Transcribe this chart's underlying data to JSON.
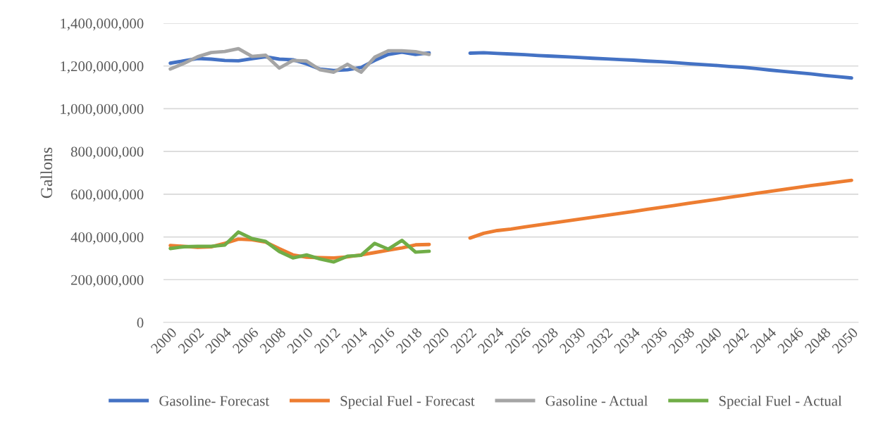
{
  "chart_data": {
    "type": "line",
    "ylabel": "Gallons",
    "categories": [
      "2000",
      null,
      "2002",
      null,
      "2004",
      null,
      "2006",
      null,
      "2008",
      null,
      "2010",
      null,
      "2012",
      null,
      "2014",
      null,
      "2016",
      null,
      "2018",
      null,
      "2020",
      null,
      "2022",
      null,
      "2024",
      null,
      "2026",
      null,
      "2028",
      null,
      "2030",
      null,
      "2032",
      null,
      "2034",
      null,
      "2036",
      null,
      "2038",
      null,
      "2040",
      null,
      "2042",
      null,
      "2044",
      null,
      "2046",
      null,
      "2048",
      null,
      "2050"
    ],
    "series": [
      {
        "name": "Gasoline- Forecast",
        "color": "#4472c4",
        "values": [
          1213000000,
          1224000000,
          1235000000,
          1232000000,
          1226000000,
          1224000000,
          1234000000,
          1243000000,
          1232000000,
          1229000000,
          1210000000,
          1185000000,
          1179000000,
          1182000000,
          1193000000,
          1226000000,
          1254000000,
          1265000000,
          1254000000,
          1261000000,
          null,
          null,
          1260000000,
          1262000000,
          1259000000,
          1256000000,
          1253000000,
          1249000000,
          1246000000,
          1243000000,
          1240000000,
          1236000000,
          1233000000,
          1230000000,
          1227000000,
          1223000000,
          1220000000,
          1216000000,
          1211000000,
          1207000000,
          1203000000,
          1198000000,
          1194000000,
          1188000000,
          1181000000,
          1175000000,
          1169000000,
          1163000000,
          1156000000,
          1150000000,
          1144000000
        ]
      },
      {
        "name": "Special Fuel - Forecast",
        "color": "#ed7d31",
        "values": [
          360000000,
          356000000,
          351000000,
          354000000,
          370000000,
          390000000,
          387000000,
          376000000,
          345000000,
          316000000,
          305000000,
          303000000,
          302000000,
          307000000,
          316000000,
          327000000,
          338000000,
          349000000,
          363000000,
          365000000,
          null,
          null,
          395000000,
          417000000,
          430000000,
          437000000,
          447000000,
          456000000,
          465000000,
          474000000,
          483000000,
          492000000,
          501000000,
          510000000,
          519000000,
          529000000,
          538000000,
          547000000,
          557000000,
          566000000,
          575000000,
          585000000,
          594000000,
          604000000,
          613000000,
          622000000,
          631000000,
          640000000,
          648000000,
          657000000,
          665000000
        ]
      },
      {
        "name": "Gasoline - Actual",
        "color": "#a5a5a5",
        "values": [
          1186000000,
          1212000000,
          1243000000,
          1263000000,
          1268000000,
          1281000000,
          1245000000,
          1250000000,
          1190000000,
          1226000000,
          1223000000,
          1182000000,
          1171000000,
          1208000000,
          1171000000,
          1241000000,
          1271000000,
          1271000000,
          1267000000,
          1254000000,
          null,
          null,
          null,
          null,
          null,
          null,
          null,
          null,
          null,
          null,
          null,
          null,
          null,
          null,
          null,
          null,
          null,
          null,
          null,
          null,
          null,
          null,
          null,
          null,
          null,
          null,
          null,
          null,
          null,
          null,
          null
        ]
      },
      {
        "name": "Special Fuel - Actual",
        "color": "#70ad47",
        "values": [
          346000000,
          354000000,
          356000000,
          356000000,
          362000000,
          423000000,
          392000000,
          379000000,
          332000000,
          302000000,
          316000000,
          297000000,
          283000000,
          310000000,
          314000000,
          370000000,
          343000000,
          384000000,
          329000000,
          333000000,
          null,
          null,
          null,
          null,
          null,
          null,
          null,
          null,
          null,
          null,
          null,
          null,
          null,
          null,
          null,
          null,
          null,
          null,
          null,
          null,
          null,
          null,
          null,
          null,
          null,
          null,
          null,
          null,
          null,
          null,
          null
        ]
      }
    ],
    "ylim": [
      0,
      1400000000
    ],
    "yticks": [
      0,
      {
        "value": 200000000,
        "label": "200,000,000"
      },
      {
        "value": 400000000,
        "label": "400,000,000"
      },
      {
        "value": 600000000,
        "label": "600,000,000"
      },
      {
        "value": 800000000,
        "label": "800,000,000"
      },
      {
        "value": 1000000000,
        "label": "1,000,000,000"
      },
      {
        "value": 1200000000,
        "label": "1,200,000,000"
      },
      {
        "value": 1400000000,
        "label": "1,400,000,000"
      }
    ],
    "grid": "y",
    "legend": "bottom",
    "marker": "none",
    "line_style": "solid"
  }
}
